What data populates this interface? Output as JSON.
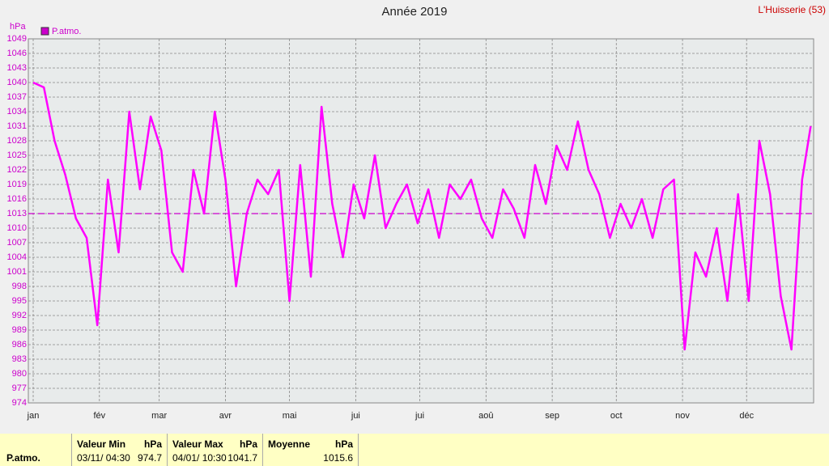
{
  "chart_data": {
    "type": "line",
    "title": "Année 2019",
    "station": "L'Huisserie (53)",
    "y_label": "hPa",
    "x": [
      1,
      6,
      11,
      16,
      21,
      26,
      31,
      36,
      41,
      46,
      51,
      56,
      61,
      66,
      71,
      76,
      81,
      86,
      91,
      96,
      101,
      106,
      111,
      116,
      121,
      126,
      131,
      136,
      141,
      146,
      151,
      156,
      161,
      166,
      171,
      176,
      181,
      186,
      191,
      196,
      201,
      206,
      211,
      216,
      221,
      226,
      231,
      236,
      241,
      246,
      251,
      256,
      261,
      266,
      271,
      276,
      281,
      286,
      291,
      296,
      301,
      306,
      311,
      316,
      321,
      326,
      331,
      336,
      341,
      346,
      351,
      356,
      361,
      365
    ],
    "series": [
      {
        "name": "P.atmo.",
        "color": "#ff00ff",
        "values": [
          1040,
          1039,
          1028,
          1021,
          1012,
          1008,
          990,
          1020,
          1005,
          1034,
          1018,
          1033,
          1026,
          1005,
          1001,
          1022,
          1013,
          1034,
          1020,
          998,
          1013,
          1020,
          1017,
          1022,
          995,
          1023,
          1000,
          1035,
          1015,
          1004,
          1019,
          1012,
          1025,
          1010,
          1015,
          1019,
          1011,
          1018,
          1008,
          1019,
          1016,
          1020,
          1012,
          1008,
          1018,
          1014,
          1008,
          1023,
          1015,
          1027,
          1022,
          1032,
          1022,
          1017,
          1008,
          1015,
          1010,
          1016,
          1008,
          1018,
          1020,
          985,
          1005,
          1000,
          1010,
          995,
          1017,
          995,
          1028,
          1017,
          996,
          985,
          1020,
          1031
        ]
      }
    ],
    "reference_line": 1013,
    "xlim": [
      1,
      366
    ],
    "xticks": [
      {
        "value": 1,
        "label": "jan"
      },
      {
        "value": 32,
        "label": "fév"
      },
      {
        "value": 60,
        "label": "mar"
      },
      {
        "value": 91,
        "label": "avr"
      },
      {
        "value": 121,
        "label": "mai"
      },
      {
        "value": 152,
        "label": "jui"
      },
      {
        "value": 182,
        "label": "jui"
      },
      {
        "value": 213,
        "label": "aoû"
      },
      {
        "value": 244,
        "label": "sep"
      },
      {
        "value": 274,
        "label": "oct"
      },
      {
        "value": 305,
        "label": "nov"
      },
      {
        "value": 335,
        "label": "déc"
      }
    ],
    "ylim": [
      974,
      1049
    ],
    "yticks": [
      974,
      977,
      980,
      983,
      986,
      989,
      992,
      995,
      998,
      1001,
      1004,
      1007,
      1010,
      1013,
      1016,
      1019,
      1022,
      1025,
      1028,
      1031,
      1034,
      1037,
      1040,
      1043,
      1046,
      1049
    ],
    "grid": true
  },
  "table": {
    "row_label": "P.atmo.",
    "columns": [
      {
        "header": "Valeur Min",
        "unit": "hPa",
        "date": "03/11/ 04:30",
        "value": 974.7
      },
      {
        "header": "Valeur Max",
        "unit": "hPa",
        "date": "04/01/ 10:30",
        "value": 1041.7
      },
      {
        "header": "Moyenne",
        "unit": "hPa",
        "value": 1015.6
      }
    ]
  }
}
